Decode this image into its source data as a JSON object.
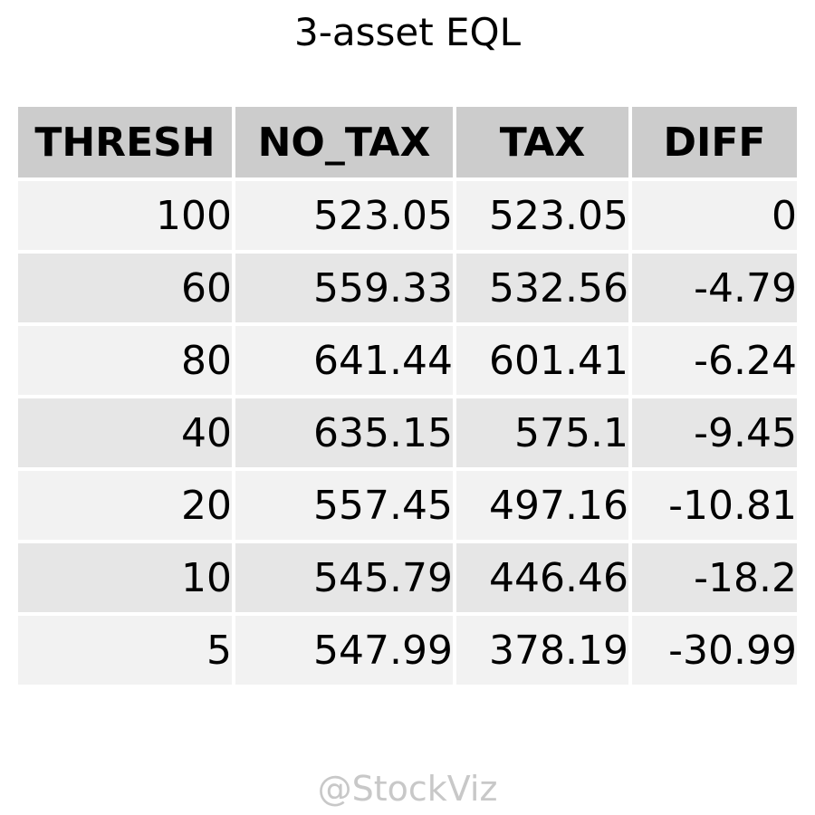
{
  "chart_data": {
    "type": "table",
    "title": "3-asset EQL",
    "columns": [
      "THRESH",
      "NO_TAX",
      "TAX",
      "DIFF"
    ],
    "rows": [
      [
        "100",
        "523.05",
        "523.05",
        "0"
      ],
      [
        "60",
        "559.33",
        "532.56",
        "-4.79"
      ],
      [
        "80",
        "641.44",
        "601.41",
        "-6.24"
      ],
      [
        "40",
        "635.15",
        "575.1",
        "-9.45"
      ],
      [
        "20",
        "557.45",
        "497.16",
        "-10.81"
      ],
      [
        "10",
        "545.79",
        "446.46",
        "-18.2"
      ],
      [
        "5",
        "547.99",
        "378.19",
        "-30.99"
      ]
    ],
    "colors": {
      "header_bg": "#cccccc",
      "row_bg_odd": "#f2f2f2",
      "row_bg_even": "#e6e6e6",
      "watermark": "#c8c8c8"
    }
  },
  "watermark": "@StockViz"
}
